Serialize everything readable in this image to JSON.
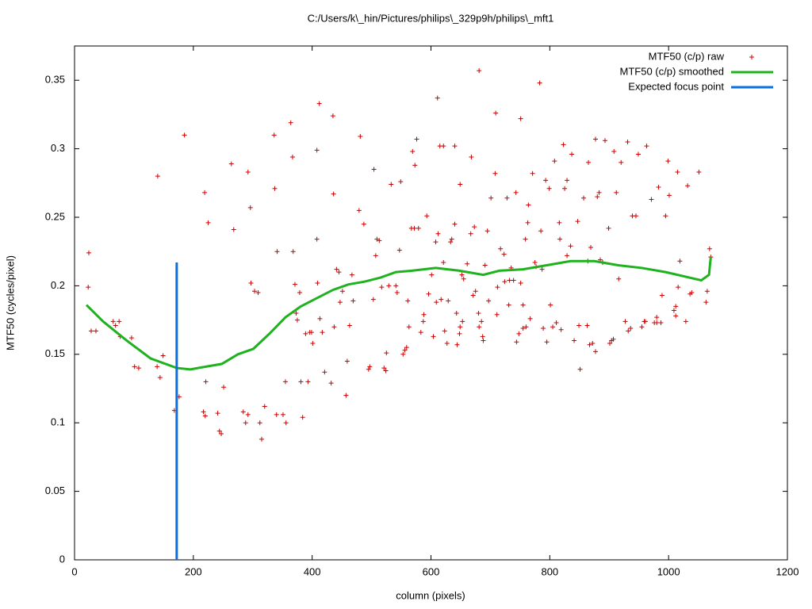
{
  "chart_data": {
    "type": "scatter",
    "title": "C:/Users/k\\_hin/Pictures/philips\\_329p9h/philips\\_mft1",
    "x_label": "column (pixels)",
    "y_label": "MTF50 (cycles/pixel)",
    "xlim": [
      0,
      1200
    ],
    "xticks": [
      0,
      200,
      400,
      600,
      800,
      1000,
      1200
    ],
    "ylim": [
      0,
      0.375
    ],
    "yticks": [
      0,
      0.05,
      0.1,
      0.15,
      0.2,
      0.25,
      0.3,
      0.35
    ],
    "grid": false,
    "legend": "top-right",
    "series": [
      {
        "name": "MTF50 (c/p) raw",
        "color": "#cc0000",
        "style": "points",
        "x": [
          23,
          24,
          28,
          36,
          65,
          69,
          75,
          77,
          96,
          101,
          108,
          140,
          139,
          144,
          149,
          168,
          176,
          185,
          219,
          221,
          225,
          217,
          220,
          241,
          244,
          247,
          251,
          264,
          268,
          284,
          288,
          292,
          292,
          296,
          297,
          303,
          309,
          312,
          315,
          320,
          336,
          337,
          340,
          341,
          351,
          355,
          356,
          364,
          367,
          368,
          371,
          373,
          375,
          379,
          381,
          384,
          389,
          393,
          396,
          399,
          401,
          408,
          408,
          412,
          409,
          413,
          417,
          421,
          435,
          436,
          432,
          437,
          441,
          445,
          447,
          451,
          457,
          459,
          463,
          467,
          469,
          479,
          481,
          487,
          495,
          497,
          504,
          503,
          507,
          509,
          513,
          517,
          521,
          524,
          525,
          529,
          533,
          541,
          543,
          549,
          547,
          553,
          556,
          559,
          561,
          563,
          567,
          569,
          573,
          576,
          572,
          579,
          583,
          587,
          588,
          593,
          596,
          601,
          604,
          608,
          609,
          611,
          612,
          615,
          621,
          621,
          617,
          623,
          627,
          629,
          633,
          635,
          640,
          640,
          643,
          644,
          648,
          649,
          652,
          653,
          649,
          655,
          661,
          667,
          668,
          671,
          673,
          675,
          680,
          681,
          681,
          685,
          687,
          688,
          691,
          695,
          697,
          701,
          709,
          708,
          711,
          712,
          717,
          723,
          724,
          728,
          731,
          732,
          735,
          739,
          743,
          744,
          748,
          751,
          751,
          755,
          755,
          759,
          760,
          763,
          764,
          767,
          771,
          775,
          777,
          783,
          785,
          787,
          789,
          793,
          795,
          799,
          801,
          805,
          808,
          811,
          816,
          817,
          819,
          823,
          825,
          829,
          829,
          835,
          837,
          841,
          847,
          849,
          851,
          857,
          863,
          864,
          865,
          867,
          869,
          872,
          877,
          877,
          880,
          883,
          885,
          889,
          893,
          899,
          901,
          904,
          907,
          908,
          912,
          916,
          920,
          927,
          931,
          932,
          936,
          939,
          945,
          949,
          955,
          959,
          961,
          963,
          971,
          976,
          980,
          980,
          983,
          987,
          989,
          995,
          999,
          1001,
          1009,
          1012,
          1012,
          1015,
          1016,
          1019,
          1029,
          1032,
          1036,
          1039,
          1051,
          1063,
          1065,
          1069,
          1071
        ],
        "values": [
          0.199,
          0.224,
          0.167,
          0.167,
          0.174,
          0.171,
          0.174,
          0.163,
          0.162,
          0.141,
          0.14,
          0.28,
          0.141,
          0.133,
          0.149,
          0.109,
          0.119,
          0.31,
          0.268,
          0.13,
          0.246,
          0.108,
          0.105,
          0.107,
          0.094,
          0.092,
          0.126,
          0.289,
          0.241,
          0.108,
          0.1,
          0.106,
          0.283,
          0.257,
          0.202,
          0.196,
          0.195,
          0.1,
          0.088,
          0.112,
          0.31,
          0.271,
          0.106,
          0.225,
          0.106,
          0.13,
          0.1,
          0.319,
          0.294,
          0.225,
          0.201,
          0.18,
          0.175,
          0.195,
          0.13,
          0.104,
          0.165,
          0.13,
          0.166,
          0.166,
          0.158,
          0.299,
          0.234,
          0.333,
          0.202,
          0.176,
          0.166,
          0.137,
          0.324,
          0.267,
          0.129,
          0.17,
          0.212,
          0.21,
          0.188,
          0.196,
          0.12,
          0.145,
          0.171,
          0.208,
          0.189,
          0.255,
          0.309,
          0.245,
          0.139,
          0.141,
          0.285,
          0.19,
          0.222,
          0.234,
          0.233,
          0.199,
          0.14,
          0.138,
          0.151,
          0.2,
          0.274,
          0.2,
          0.195,
          0.276,
          0.226,
          0.15,
          0.153,
          0.155,
          0.189,
          0.17,
          0.242,
          0.298,
          0.288,
          0.307,
          0.242,
          0.242,
          0.166,
          0.174,
          0.179,
          0.251,
          0.194,
          0.208,
          0.163,
          0.232,
          0.188,
          0.337,
          0.238,
          0.302,
          0.302,
          0.217,
          0.19,
          0.167,
          0.158,
          0.189,
          0.232,
          0.234,
          0.302,
          0.245,
          0.18,
          0.157,
          0.165,
          0.17,
          0.208,
          0.174,
          0.274,
          0.205,
          0.216,
          0.238,
          0.294,
          0.193,
          0.243,
          0.196,
          0.18,
          0.17,
          0.357,
          0.174,
          0.163,
          0.16,
          0.215,
          0.24,
          0.189,
          0.264,
          0.326,
          0.282,
          0.179,
          0.199,
          0.227,
          0.223,
          0.203,
          0.264,
          0.186,
          0.204,
          0.213,
          0.204,
          0.268,
          0.159,
          0.165,
          0.322,
          0.202,
          0.169,
          0.186,
          0.234,
          0.17,
          0.246,
          0.259,
          0.176,
          0.282,
          0.217,
          0.214,
          0.348,
          0.24,
          0.212,
          0.169,
          0.277,
          0.159,
          0.271,
          0.186,
          0.17,
          0.291,
          0.173,
          0.246,
          0.234,
          0.168,
          0.303,
          0.271,
          0.277,
          0.222,
          0.229,
          0.296,
          0.16,
          0.247,
          0.171,
          0.139,
          0.264,
          0.171,
          0.218,
          0.29,
          0.157,
          0.228,
          0.158,
          0.152,
          0.307,
          0.265,
          0.268,
          0.219,
          0.217,
          0.306,
          0.242,
          0.158,
          0.16,
          0.161,
          0.298,
          0.268,
          0.205,
          0.29,
          0.174,
          0.305,
          0.167,
          0.169,
          0.251,
          0.251,
          0.296,
          0.17,
          0.174,
          0.174,
          0.302,
          0.263,
          0.173,
          0.177,
          0.173,
          0.272,
          0.173,
          0.193,
          0.251,
          0.291,
          0.266,
          0.182,
          0.185,
          0.178,
          0.283,
          0.199,
          0.218,
          0.174,
          0.273,
          0.194,
          0.195,
          0.283,
          0.188,
          0.196,
          0.227,
          0.221
        ]
      },
      {
        "name": "MTF50 (c/p) smoothed",
        "color": "#1fb21f",
        "style": "lines",
        "x": [
          20,
          48,
          88,
          128,
          172,
          195,
          221,
          248,
          275,
          301,
          328,
          355,
          381,
          408,
          435,
          461,
          488,
          515,
          541,
          568,
          608,
          648,
          688,
          715,
          755,
          795,
          835,
          875,
          915,
          955,
          995,
          1035,
          1055,
          1068,
          1071
        ],
        "values": [
          0.186,
          0.174,
          0.16,
          0.147,
          0.14,
          0.139,
          0.141,
          0.143,
          0.15,
          0.154,
          0.165,
          0.177,
          0.185,
          0.191,
          0.197,
          0.201,
          0.203,
          0.206,
          0.21,
          0.211,
          0.213,
          0.211,
          0.208,
          0.211,
          0.212,
          0.215,
          0.218,
          0.218,
          0.215,
          0.213,
          0.21,
          0.206,
          0.204,
          0.208,
          0.221
        ]
      },
      {
        "name": "Expected focus point",
        "color": "#0a6fe0",
        "style": "lines",
        "x": [
          172,
          172
        ],
        "values": [
          0,
          0.217
        ]
      }
    ]
  }
}
